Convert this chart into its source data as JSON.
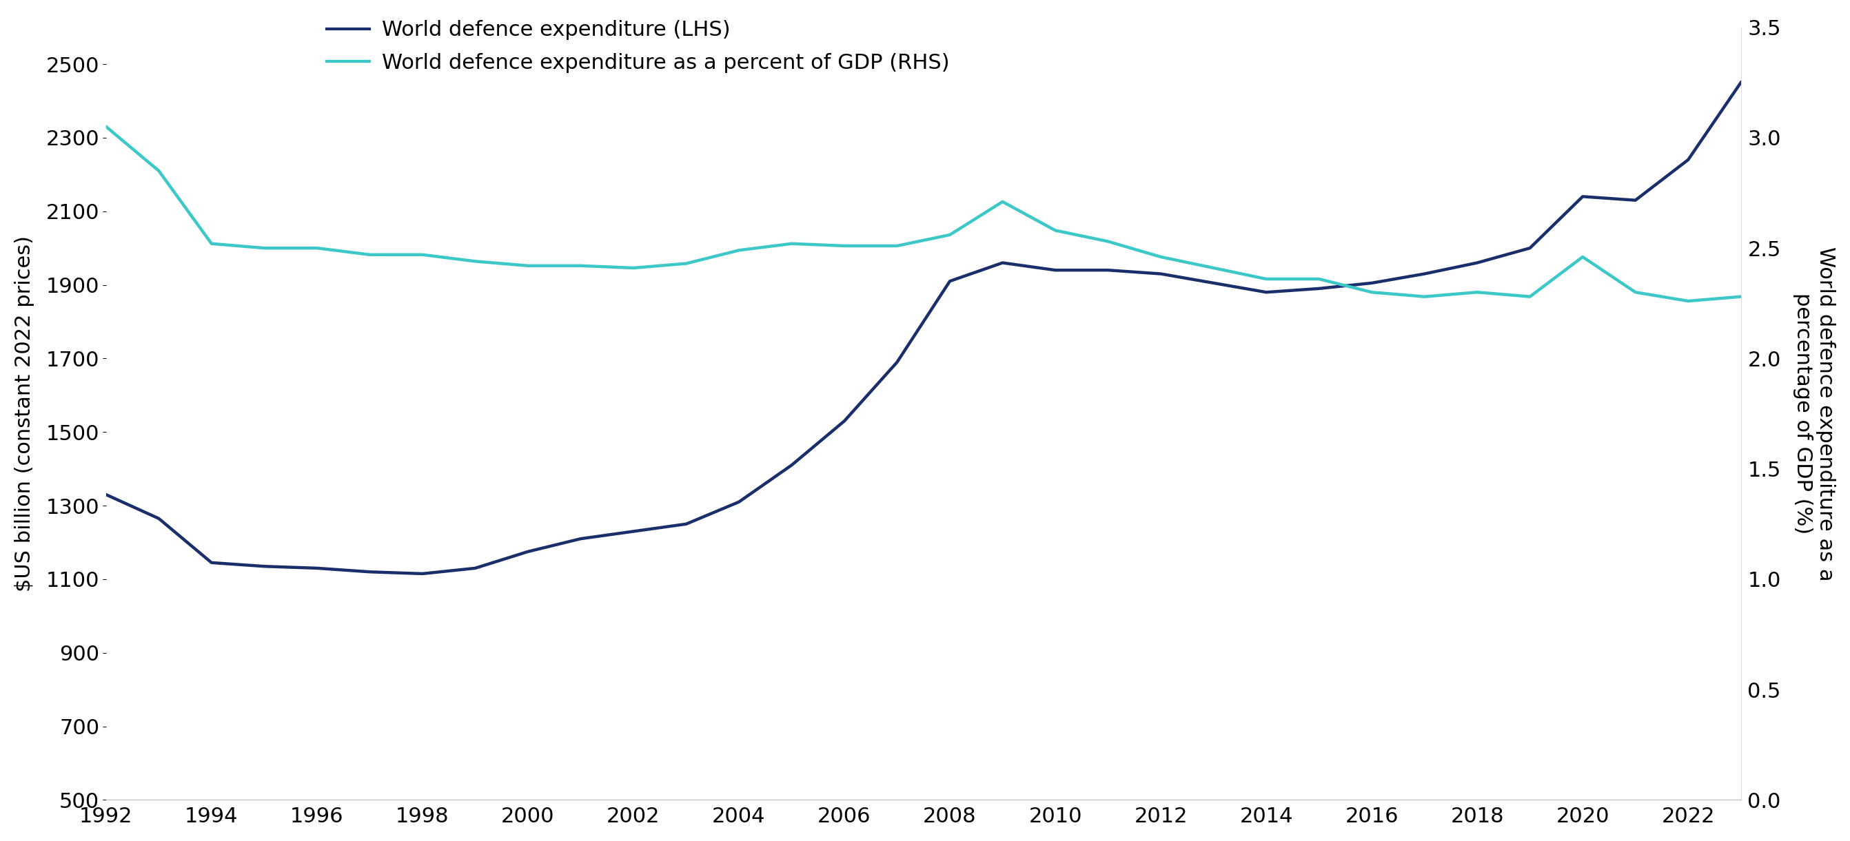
{
  "years": [
    1992,
    1993,
    1994,
    1995,
    1996,
    1997,
    1998,
    1999,
    2000,
    2001,
    2002,
    2003,
    2004,
    2005,
    2006,
    2007,
    2008,
    2009,
    2010,
    2011,
    2012,
    2013,
    2014,
    2015,
    2016,
    2017,
    2018,
    2019,
    2020,
    2021,
    2022,
    2023
  ],
  "expenditure_lhs": [
    1330,
    1265,
    1145,
    1135,
    1130,
    1120,
    1115,
    1130,
    1175,
    1210,
    1230,
    1250,
    1310,
    1410,
    1530,
    1690,
    1910,
    1960,
    1940,
    1940,
    1930,
    1905,
    1880,
    1890,
    1905,
    1930,
    1960,
    2000,
    2140,
    2130,
    2240,
    2450
  ],
  "expenditure_gdp_rhs": [
    3.05,
    2.85,
    2.52,
    2.5,
    2.5,
    2.47,
    2.47,
    2.44,
    2.42,
    2.42,
    2.41,
    2.43,
    2.49,
    2.52,
    2.51,
    2.51,
    2.56,
    2.71,
    2.58,
    2.53,
    2.46,
    2.41,
    2.36,
    2.36,
    2.3,
    2.28,
    2.3,
    2.28,
    2.46,
    2.3,
    2.26,
    2.28
  ],
  "lhs_color": "#1a2e6b",
  "rhs_color": "#3cc8c8",
  "lhs_label": "World defence expenditure (LHS)",
  "rhs_label": "World defence expenditure as a percent of GDP (RHS)",
  "lhs_ylabel": "$US billion (constant 2022 prices)",
  "rhs_ylabel": "World defence expenditure as a\npercentage of GDP (%)",
  "ylim_lhs": [
    500,
    2600
  ],
  "ylim_rhs": [
    0,
    3.5
  ],
  "yticks_lhs": [
    500,
    700,
    900,
    1100,
    1300,
    1500,
    1700,
    1900,
    2100,
    2300,
    2500
  ],
  "yticks_rhs": [
    0,
    0.5,
    1.0,
    1.5,
    2.0,
    2.5,
    3.0,
    3.5
  ],
  "background_color": "#ffffff",
  "line_width": 3.2,
  "tick_fontsize": 22,
  "label_fontsize": 22,
  "legend_fontsize": 22
}
